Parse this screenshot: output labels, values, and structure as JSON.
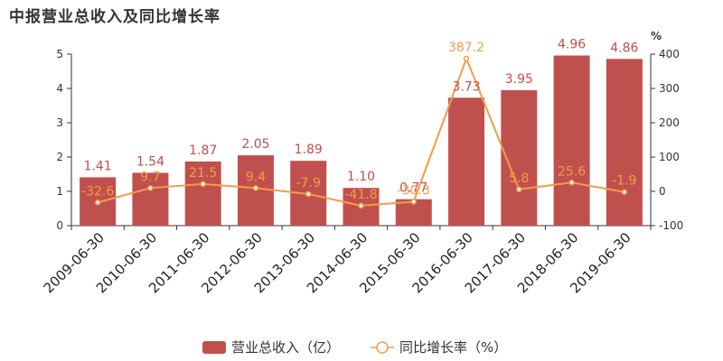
{
  "chart_data": {
    "type": "bar",
    "title": "中报营业总收入及同比增长率",
    "categories": [
      "2009-06-30",
      "2010-06-30",
      "2011-06-30",
      "2012-06-30",
      "2013-06-30",
      "2014-06-30",
      "2015-06-30",
      "2016-06-30",
      "2017-06-30",
      "2018-06-30",
      "2019-06-30"
    ],
    "series": [
      {
        "name": "营业总收入（亿）",
        "type": "bar",
        "axis": "left",
        "values": [
          1.41,
          1.54,
          1.87,
          2.05,
          1.89,
          1.1,
          0.77,
          3.73,
          3.95,
          4.96,
          4.86
        ],
        "labels": [
          "1.41",
          "1.54",
          "1.87",
          "2.05",
          "1.89",
          "1.10",
          "0.77",
          "3.73",
          "3.95",
          "4.96",
          "4.86"
        ],
        "color": "#c0504d"
      },
      {
        "name": "同比增长率（%）",
        "type": "line",
        "axis": "right",
        "values": [
          -32.6,
          9.7,
          21.5,
          9.4,
          -7.9,
          -41.8,
          -30.3,
          387.2,
          5.8,
          25.6,
          -1.9
        ],
        "labels": [
          "-32.6",
          "9.7",
          "21.5",
          "9.4",
          "-7.9",
          "-41.8",
          "-30.3",
          "387.2",
          "5.8",
          "25.6",
          "-1.9"
        ],
        "color": "#f39c4a"
      }
    ],
    "y_left": {
      "min": 0,
      "max": 5,
      "ticks": [
        "0",
        "1",
        "2",
        "3",
        "4",
        "5"
      ]
    },
    "y_right": {
      "min": -100,
      "max": 400,
      "ticks": [
        "-100",
        "0",
        "100",
        "200",
        "300",
        "400"
      ],
      "unit": "%"
    },
    "legend_position": "bottom",
    "grid": false
  }
}
